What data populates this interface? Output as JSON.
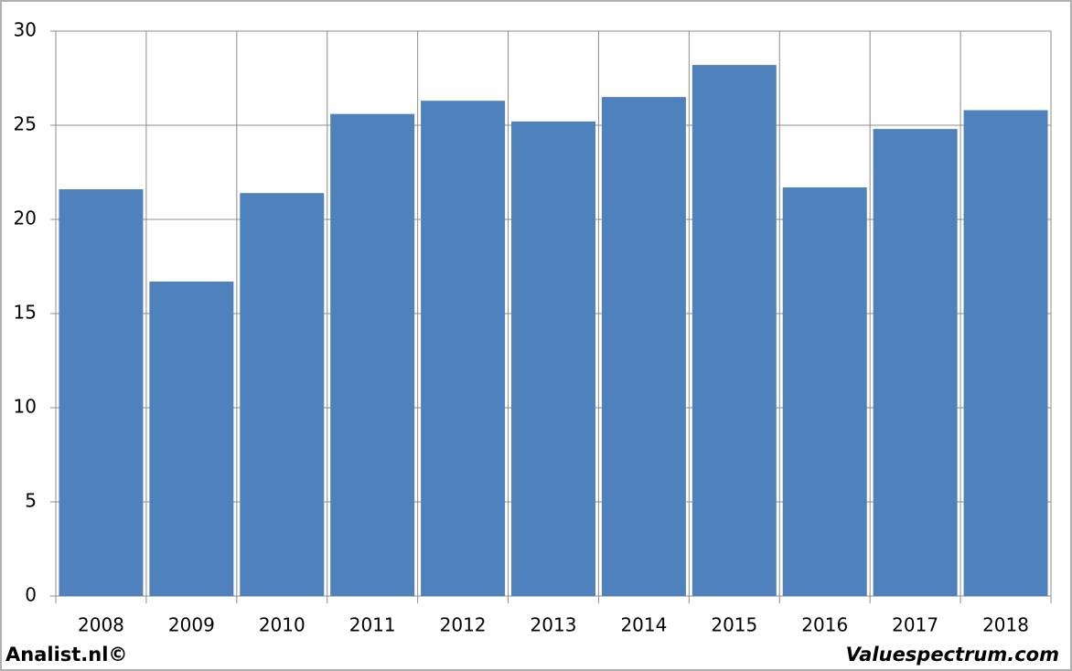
{
  "chart_data": {
    "type": "bar",
    "categories": [
      "2008",
      "2009",
      "2010",
      "2011",
      "2012",
      "2013",
      "2014",
      "2015",
      "2016",
      "2017",
      "2018"
    ],
    "values": [
      21.6,
      16.7,
      21.4,
      25.6,
      26.3,
      25.2,
      26.5,
      28.2,
      21.7,
      24.8,
      25.8
    ],
    "color": "#4f81bd",
    "ylim": [
      0,
      30
    ],
    "yticks": [
      0,
      5,
      10,
      15,
      20,
      25,
      30
    ],
    "grid": true
  },
  "footer": {
    "left": "Analist.nl©",
    "right": "Valuespectrum.com"
  }
}
